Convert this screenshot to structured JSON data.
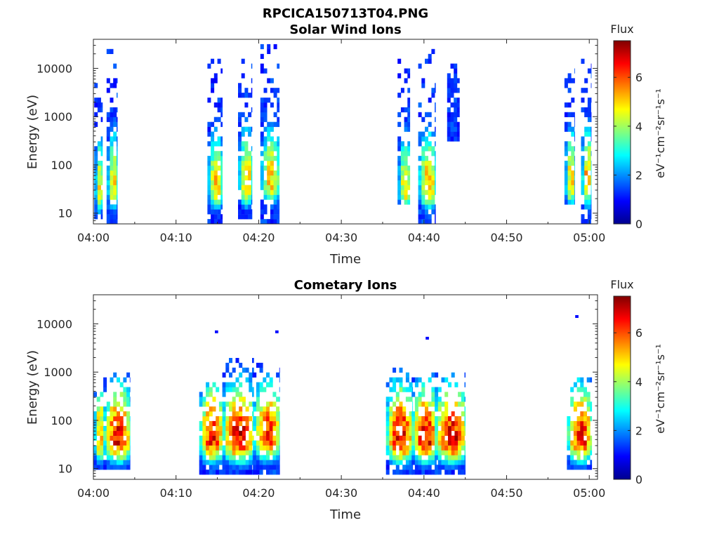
{
  "figure": {
    "title": "RPCICA150713T04.PNG"
  },
  "chart_data": [
    {
      "type": "heatmap",
      "title": "Solar Wind Ions",
      "xlabel": "Time",
      "ylabel": "Energy (eV)",
      "y_scale": "log",
      "ylim": [
        6,
        40000
      ],
      "xlim": [
        "04:00",
        "05:01"
      ],
      "x_ticks": [
        "04:00",
        "04:10",
        "04:20",
        "04:30",
        "04:40",
        "04:50",
        "05:00"
      ],
      "y_ticks": [
        "10",
        "100",
        "1000",
        "10000"
      ],
      "colorbar": {
        "label": "Flux",
        "unit": "eV⁻¹cm⁻²sr⁻¹s⁻¹",
        "range": [
          0,
          7.5
        ],
        "ticks": [
          "0",
          "2",
          "4",
          "6"
        ],
        "colormap": "jet"
      },
      "bursts": [
        {
          "time_min": 0.1,
          "duration_min": 1.0,
          "emin_eV": 8,
          "emax_eV": 8000,
          "peak_energy_eV": 30,
          "peak_flux": 4.8
        },
        {
          "time_min": 1.6,
          "duration_min": 1.3,
          "emin_eV": 6,
          "emax_eV": 25000,
          "peak_energy_eV": 35,
          "peak_flux": 5.0
        },
        {
          "time_min": 13.8,
          "duration_min": 1.8,
          "emin_eV": 6,
          "emax_eV": 15000,
          "peak_energy_eV": 35,
          "peak_flux": 5.0
        },
        {
          "time_min": 17.5,
          "duration_min": 1.7,
          "emin_eV": 8,
          "emax_eV": 15000,
          "peak_energy_eV": 40,
          "peak_flux": 5.2
        },
        {
          "time_min": 20.2,
          "duration_min": 2.3,
          "emin_eV": 6,
          "emax_eV": 30000,
          "peak_energy_eV": 45,
          "peak_flux": 5.0
        },
        {
          "time_min": 36.8,
          "duration_min": 1.5,
          "emin_eV": 15,
          "emax_eV": 15000,
          "peak_energy_eV": 30,
          "peak_flux": 4.8
        },
        {
          "time_min": 39.3,
          "duration_min": 2.1,
          "emin_eV": 6,
          "emax_eV": 25000,
          "peak_energy_eV": 35,
          "peak_flux": 5.2
        },
        {
          "time_min": 42.8,
          "duration_min": 1.5,
          "emin_eV": 300,
          "emax_eV": 15000,
          "peak_energy_eV": 2000,
          "peak_flux": 1.5
        },
        {
          "time_min": 57.0,
          "duration_min": 1.2,
          "emin_eV": 15,
          "emax_eV": 10000,
          "peak_energy_eV": 40,
          "peak_flux": 5.0
        },
        {
          "time_min": 59.0,
          "duration_min": 1.2,
          "emin_eV": 6,
          "emax_eV": 15000,
          "peak_energy_eV": 40,
          "peak_flux": 5.5
        }
      ]
    },
    {
      "type": "heatmap",
      "title": "Cometary Ions",
      "xlabel": "Time",
      "ylabel": "Energy (eV)",
      "y_scale": "log",
      "ylim": [
        6,
        40000
      ],
      "xlim": [
        "04:00",
        "05:01"
      ],
      "x_ticks": [
        "04:00",
        "04:10",
        "04:20",
        "04:30",
        "04:40",
        "04:50",
        "05:00"
      ],
      "y_ticks": [
        "10",
        "100",
        "1000",
        "10000"
      ],
      "colorbar": {
        "label": "Flux",
        "unit": "eV⁻¹cm⁻²sr⁻¹s⁻¹",
        "range": [
          0,
          7.5
        ],
        "ticks": [
          "0",
          "2",
          "4",
          "6"
        ],
        "colormap": "jet"
      },
      "bursts": [
        {
          "time_min": 0.0,
          "duration_min": 1.2,
          "emin_eV": 10,
          "emax_eV": 600,
          "peak_energy_eV": 40,
          "peak_flux": 5.5
        },
        {
          "time_min": 1.2,
          "duration_min": 3.2,
          "emin_eV": 10,
          "emax_eV": 900,
          "peak_energy_eV": 40,
          "peak_flux": 6.5
        },
        {
          "time_min": 12.8,
          "duration_min": 2.8,
          "emin_eV": 7,
          "emax_eV": 1000,
          "peak_energy_eV": 40,
          "peak_flux": 6.5
        },
        {
          "time_min": 15.6,
          "duration_min": 3.8,
          "emin_eV": 8,
          "emax_eV": 2200,
          "peak_energy_eV": 40,
          "peak_flux": 6.8
        },
        {
          "time_min": 19.3,
          "duration_min": 3.2,
          "emin_eV": 8,
          "emax_eV": 1500,
          "peak_energy_eV": 45,
          "peak_flux": 6.3
        },
        {
          "time_min": 35.4,
          "duration_min": 3.2,
          "emin_eV": 7,
          "emax_eV": 1300,
          "peak_energy_eV": 40,
          "peak_flux": 6.8
        },
        {
          "time_min": 38.5,
          "duration_min": 3.0,
          "emin_eV": 8,
          "emax_eV": 1000,
          "peak_energy_eV": 40,
          "peak_flux": 6.8
        },
        {
          "time_min": 41.3,
          "duration_min": 3.7,
          "emin_eV": 8,
          "emax_eV": 900,
          "peak_energy_eV": 40,
          "peak_flux": 6.8
        },
        {
          "time_min": 57.3,
          "duration_min": 3.0,
          "emin_eV": 10,
          "emax_eV": 700,
          "peak_energy_eV": 40,
          "peak_flux": 6.5
        }
      ],
      "isolated_points": [
        {
          "time_min": 14.7,
          "energy_eV": 6500,
          "flux": 1.0
        },
        {
          "time_min": 22.0,
          "energy_eV": 6500,
          "flux": 1.0
        },
        {
          "time_min": 40.2,
          "energy_eV": 4800,
          "flux": 1.0
        },
        {
          "time_min": 58.3,
          "energy_eV": 13500,
          "flux": 1.0
        }
      ]
    }
  ]
}
